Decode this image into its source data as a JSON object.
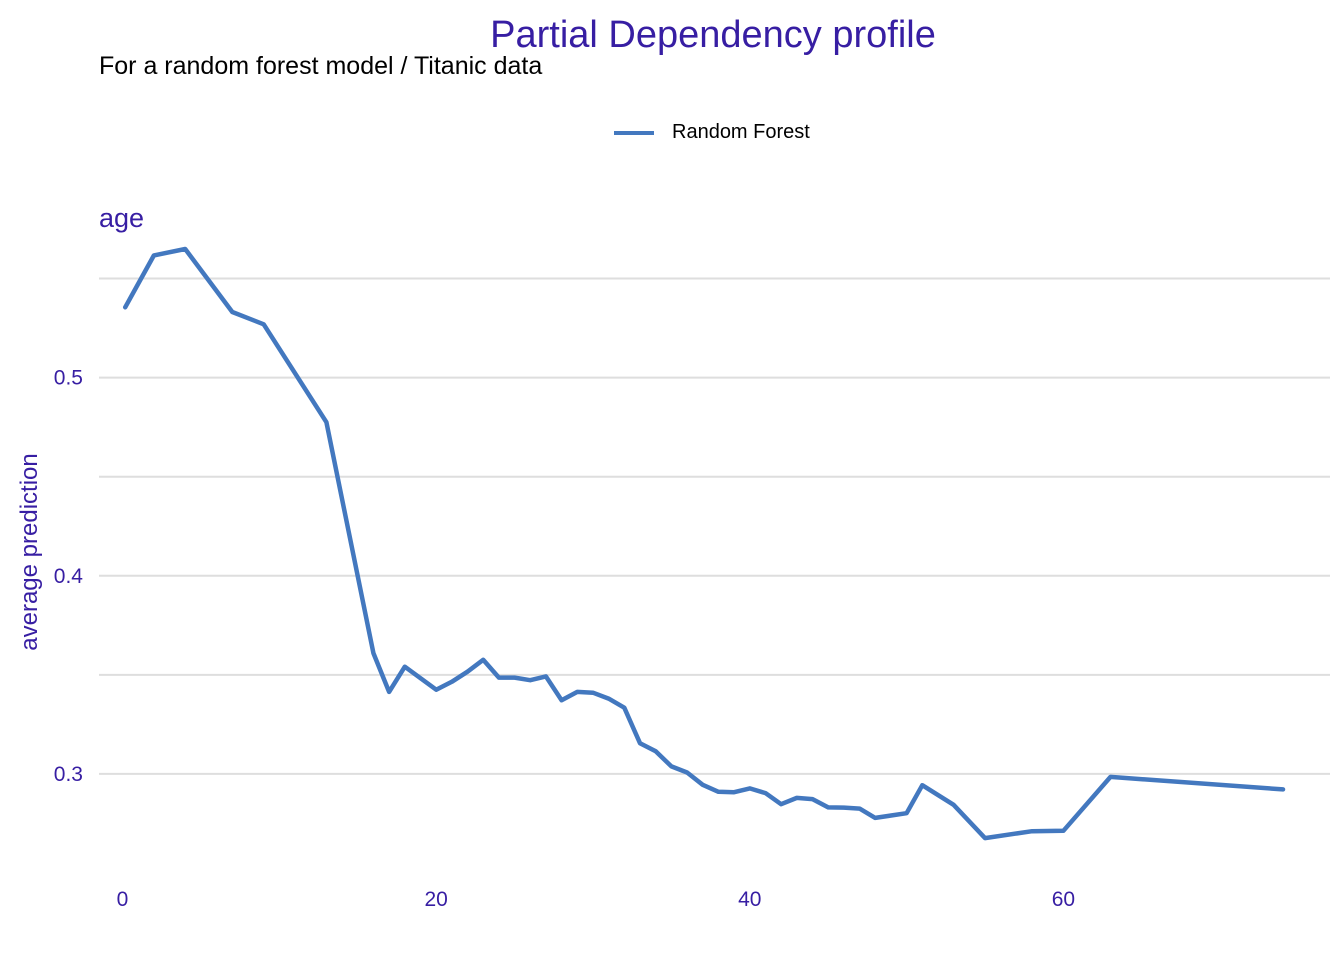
{
  "chart_data": {
    "type": "line",
    "title": "Partial Dependency profile",
    "subtitle": "For a random forest model / Titanic data",
    "facet_label": "age",
    "ylabel": "average prediction",
    "xlabel": "",
    "xlim": [
      -1.5,
      77
    ],
    "ylim": [
      0.25,
      0.5745
    ],
    "x_ticks": [
      0,
      20,
      40,
      60
    ],
    "y_ticks": [
      0.3,
      0.4,
      0.5
    ],
    "y_minor_gridlines": [
      0.35,
      0.45,
      0.55
    ],
    "grid": "horizontal",
    "legend": {
      "position": "top",
      "entries": [
        "Random Forest"
      ]
    },
    "series": [
      {
        "name": "Random Forest",
        "color": "#4378bf",
        "x": [
          0.17,
          2,
          4,
          7,
          9,
          13,
          16,
          17,
          18,
          20,
          21,
          22,
          23,
          24,
          25,
          26,
          27,
          28,
          29,
          30,
          31,
          32,
          33,
          34,
          35,
          36,
          37,
          38,
          39,
          40,
          41,
          42,
          43,
          44,
          45,
          46,
          47,
          48,
          50,
          51,
          53,
          55,
          58,
          60,
          63,
          74
        ],
        "y": [
          0.5355,
          0.5617,
          0.5649,
          0.5331,
          0.5269,
          0.4775,
          0.361,
          0.3414,
          0.3541,
          0.3425,
          0.3465,
          0.3516,
          0.3576,
          0.3486,
          0.3486,
          0.3473,
          0.3492,
          0.3372,
          0.3414,
          0.341,
          0.338,
          0.3334,
          0.3155,
          0.3114,
          0.3038,
          0.3007,
          0.2945,
          0.291,
          0.2908,
          0.2927,
          0.2903,
          0.2847,
          0.2879,
          0.2873,
          0.2831,
          0.283,
          0.2825,
          0.2778,
          0.2802,
          0.2943,
          0.2844,
          0.2676,
          0.2711,
          0.2713,
          0.2985,
          0.2922
        ]
      }
    ]
  },
  "colors": {
    "accent": "#371ea3",
    "line": "#4378bf",
    "grid": "#dedede"
  }
}
